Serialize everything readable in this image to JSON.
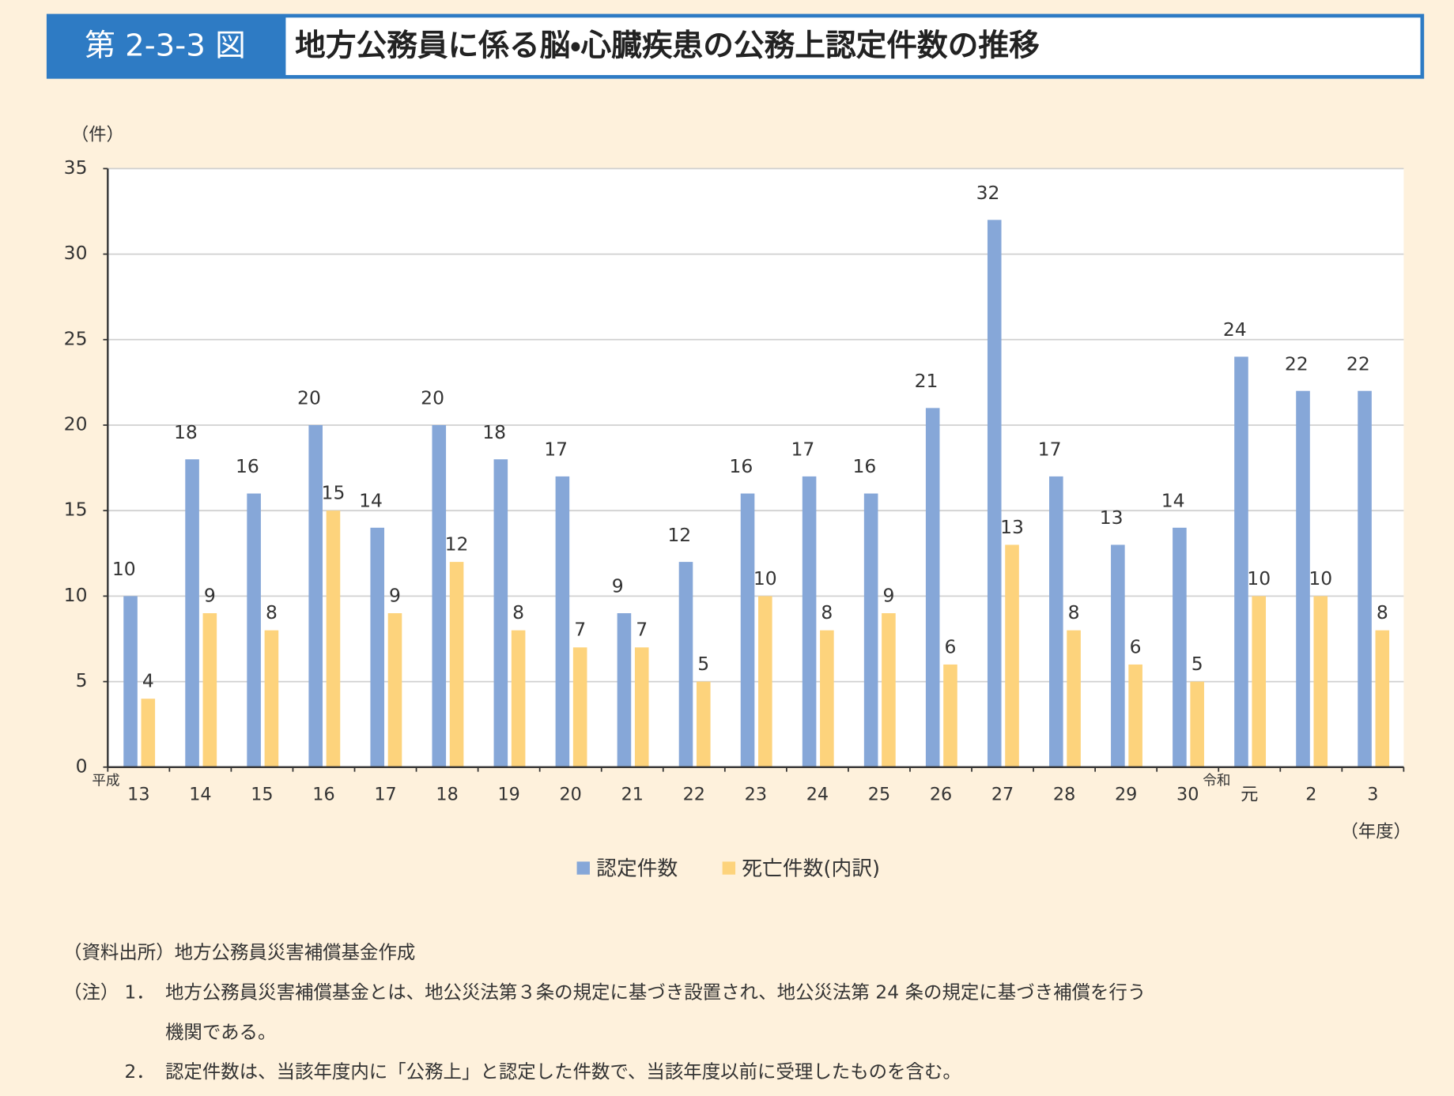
{
  "header": {
    "label": "第 2-3-3 図",
    "title": "地方公務員に係る脳・心臓疾患の公務上認定件数の推移"
  },
  "chart_data": {
    "type": "bar",
    "y_unit": "（件）",
    "x_unit": "（年度）",
    "categories": [
      "13",
      "14",
      "15",
      "16",
      "17",
      "18",
      "19",
      "20",
      "21",
      "22",
      "23",
      "24",
      "25",
      "26",
      "27",
      "28",
      "29",
      "30",
      "元",
      "2",
      "3"
    ],
    "era_labels": [
      {
        "label": "平成",
        "category": "13"
      },
      {
        "label": "令和",
        "category": "元"
      }
    ],
    "series": [
      {
        "name": "認定件数",
        "color": "#86a7d8",
        "values": [
          10,
          18,
          16,
          20,
          14,
          20,
          18,
          17,
          9,
          12,
          16,
          17,
          16,
          21,
          32,
          17,
          13,
          14,
          24,
          22,
          22
        ]
      },
      {
        "name": "死亡件数(内訳)",
        "color": "#fdd37c",
        "values": [
          4,
          9,
          8,
          15,
          9,
          12,
          8,
          7,
          7,
          5,
          10,
          8,
          9,
          6,
          13,
          8,
          6,
          5,
          10,
          10,
          8
        ]
      }
    ],
    "ylim": [
      0,
      35
    ],
    "yticks": [
      0,
      5,
      10,
      15,
      20,
      25,
      30,
      35
    ],
    "grid": true,
    "legend": "bottom"
  },
  "footer": {
    "source": "（資料出所）地方公務員災害補償基金作成",
    "notes": [
      {
        "marker": "（注）",
        "number": "1．",
        "lines": [
          "地方公務員災害補償基金とは、地公災法第３条の規定に基づき設置され、地公災法第 24 条の規定に基づき補償を行う",
          "機関である。"
        ]
      },
      {
        "number": "2．",
        "lines": [
          "認定件数は、当該年度内に「公務上」と認定した件数で、当該年度以前に受理したものを含む。"
        ]
      }
    ]
  }
}
